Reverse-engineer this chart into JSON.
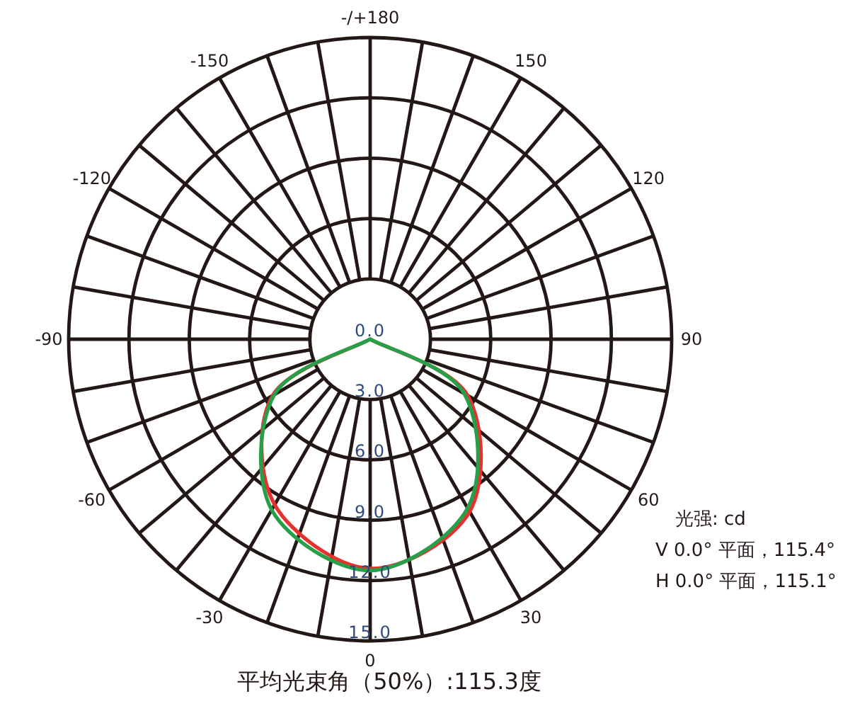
{
  "chart_data": {
    "type": "radar",
    "categories": [
      "-/+180",
      "150",
      "120",
      "90",
      "60",
      "30",
      "0",
      "-30",
      "-60",
      "-90",
      "-120",
      "-150"
    ],
    "series": [
      {
        "color": "#e8312f",
        "values": [
          0,
          0,
          0,
          0,
          5.6,
          9.9,
          11.4,
          9.5,
          5.6,
          0,
          0,
          0
        ]
      },
      {
        "color": "#279e48",
        "values": [
          0,
          0,
          0,
          0,
          5.4,
          9.7,
          11.5,
          9.8,
          5.5,
          0,
          0,
          0
        ]
      }
    ],
    "ylim": [
      0,
      15
    ],
    "yticks": [
      {
        "value": 0,
        "label": "0.0"
      },
      {
        "value": 3,
        "label": "3.0"
      },
      {
        "value": 6,
        "label": "6.0"
      },
      {
        "value": 9,
        "label": "9.0"
      },
      {
        "value": 12,
        "label": "12.0"
      },
      {
        "value": 15,
        "label": "15.0"
      }
    ],
    "grid": true,
    "annotations": [
      "光强: cd",
      "V 0.0° 平面，115.4°",
      "H 0.0° 平面，115.1°",
      "平均光束角（50%）:115.3度"
    ]
  }
}
